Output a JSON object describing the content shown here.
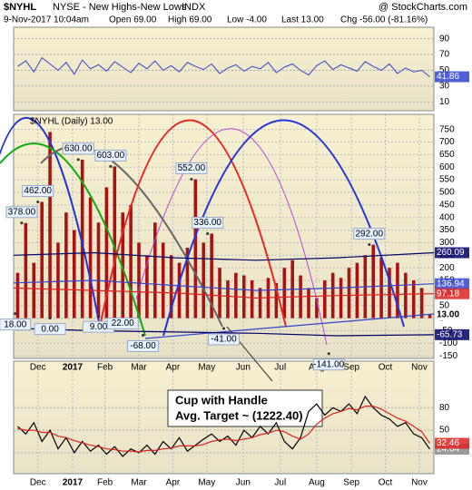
{
  "header": {
    "symbol": "$NYHL",
    "name": "NYSE - New Highs-New Lows",
    "exchange": "INDX",
    "watermark": "@ StockCharts.com",
    "date": "9-Nov-2017 10:04am",
    "open": "Open 69.00",
    "high": "High 69.00",
    "low": "Low -4.00",
    "last": "Last 13.00",
    "change": "Chg -56.00 (-81.16%)"
  },
  "callout": {
    "line1": "Cup with Handle",
    "line2": "Avg. Target ~ (1222.40)"
  },
  "chart_data": [
    {
      "type": "line",
      "ylim": [
        0,
        100
      ],
      "yticks": [
        10,
        30,
        50,
        70,
        90
      ],
      "color": "#3344cc",
      "values": [
        55,
        62,
        48,
        66,
        58,
        50,
        60,
        45,
        63,
        52,
        57,
        49,
        61,
        54,
        47,
        59,
        52,
        62,
        50,
        56,
        48,
        60,
        55,
        51,
        58,
        46,
        53,
        57,
        49,
        55,
        52,
        60,
        47,
        54,
        58,
        50,
        44,
        56,
        62,
        51,
        57,
        53,
        49,
        61,
        55,
        50,
        58,
        46,
        53,
        48,
        50,
        41.86
      ],
      "value_labels": {
        "last": "41.86"
      }
    },
    {
      "type": "bar",
      "legend": "$NYHL (Daily) 13.00",
      "ylim": [
        -160,
        810
      ],
      "yticks": [
        -150,
        -100,
        -50,
        0,
        50,
        100,
        150,
        200,
        250,
        300,
        350,
        400,
        450,
        500,
        550,
        600,
        650,
        700,
        750
      ],
      "xlim": [
        0,
        52
      ],
      "xticks": [
        {
          "value": 3.0,
          "label": "Dec"
        },
        {
          "value": 7.3,
          "label": "2017"
        },
        {
          "value": 11.3,
          "label": "Feb"
        },
        {
          "value": 15.5,
          "label": "Mar"
        },
        {
          "value": 19.7,
          "label": "Apr"
        },
        {
          "value": 23.9,
          "label": "May"
        },
        {
          "value": 28.4,
          "label": "Jun"
        },
        {
          "value": 33.0,
          "label": "Jul"
        },
        {
          "value": 37.5,
          "label": "Aug"
        },
        {
          "value": 41.8,
          "label": "Sep"
        },
        {
          "value": 46.0,
          "label": "Oct"
        },
        {
          "value": 50.2,
          "label": "Nov"
        }
      ],
      "grid": true,
      "color": "#aa1111",
      "values": [
        180,
        378,
        220,
        462,
        740,
        300,
        420,
        350,
        630,
        480,
        380,
        520,
        603,
        420,
        450,
        300,
        250,
        380,
        300,
        250,
        220,
        280,
        552,
        300,
        336,
        200,
        150,
        180,
        170,
        150,
        120,
        160,
        140,
        200,
        230,
        170,
        120,
        80,
        150,
        180,
        160,
        200,
        220,
        250,
        292,
        240,
        200,
        220,
        180,
        150,
        120,
        13
      ],
      "last_label": "13.00",
      "overlays": [
        {
          "color": "#000066",
          "x": [
            0,
            10,
            20,
            30,
            40,
            52
          ],
          "values": [
            250,
            260,
            240,
            230,
            240,
            260.09
          ],
          "last_label": "260.09"
        },
        {
          "color": "#3344cc",
          "x": [
            0,
            10,
            20,
            30,
            40,
            52
          ],
          "values": [
            140,
            150,
            130,
            110,
            120,
            136.94
          ],
          "last_label": "136.94"
        },
        {
          "color": "#dd2222",
          "x": [
            0,
            10,
            20,
            30,
            40,
            52
          ],
          "values": [
            120,
            110,
            100,
            80,
            90,
            97.18
          ],
          "last_label": "97.18"
        },
        {
          "color": "#000066",
          "x": [
            0,
            10,
            20,
            30,
            40,
            52
          ],
          "values": [
            -40,
            -50,
            -55,
            -60,
            -70,
            -65.73
          ],
          "last_label": "-65.73"
        }
      ],
      "annotations": [
        {
          "x": 1,
          "value": 378,
          "label": "378.00"
        },
        {
          "x": 3,
          "value": 462,
          "label": "462.00"
        },
        {
          "x": 8,
          "value": 630,
          "label": "630.00"
        },
        {
          "x": 12,
          "value": 603,
          "label": "603.00"
        },
        {
          "x": 22,
          "value": 552,
          "label": "552.00"
        },
        {
          "x": 24,
          "value": 336,
          "label": "336.00"
        },
        {
          "x": 44,
          "value": 292,
          "label": "292.00"
        },
        {
          "x": 0.2,
          "value": 18,
          "label": "18.00"
        },
        {
          "x": 4.5,
          "value": 0,
          "label": "0.00"
        },
        {
          "x": 10.5,
          "value": 9,
          "label": "9.00"
        },
        {
          "x": 13.5,
          "value": 22,
          "label": "22.00"
        },
        {
          "x": 16,
          "value": -68,
          "label": "-68.00"
        },
        {
          "x": 26,
          "value": -41,
          "label": "-41.00"
        },
        {
          "x": 39,
          "value": -141,
          "label": "-141.00"
        }
      ]
    },
    {
      "type": "line",
      "ylim": [
        -8,
        142
      ],
      "yticks": [
        50,
        80
      ],
      "hlines": [
        20
      ],
      "xlim": [
        0,
        52
      ],
      "xticks": [
        {
          "value": 3.0,
          "label": "Dec"
        },
        {
          "value": 7.3,
          "label": "2017"
        },
        {
          "value": 11.3,
          "label": "Feb"
        },
        {
          "value": 15.5,
          "label": "Mar"
        },
        {
          "value": 19.7,
          "label": "Apr"
        },
        {
          "value": 23.9,
          "label": "May"
        },
        {
          "value": 28.4,
          "label": "Jun"
        },
        {
          "value": 33.0,
          "label": "Jul"
        },
        {
          "value": 37.5,
          "label": "Aug"
        },
        {
          "value": 41.8,
          "label": "Sep"
        },
        {
          "value": 46.0,
          "label": "Oct"
        },
        {
          "value": 50.2,
          "label": "Nov"
        }
      ],
      "series": [
        {
          "color": "#000000",
          "values": [
            55,
            45,
            60,
            35,
            50,
            25,
            40,
            20,
            35,
            22,
            30,
            18,
            28,
            15,
            25,
            20,
            30,
            18,
            35,
            25,
            40,
            22,
            30,
            38,
            45,
            35,
            42,
            30,
            50,
            40,
            55,
            45,
            60,
            35,
            25,
            40,
            75,
            85,
            70,
            80,
            75,
            85,
            72,
            95,
            80,
            70,
            65,
            55,
            60,
            45,
            40,
            24.64
          ],
          "last_label": "24.64"
        },
        {
          "color": "#dd2222",
          "values": [
            52,
            50,
            50,
            47,
            47,
            42,
            40,
            36,
            33,
            30,
            28,
            25,
            24,
            22,
            22,
            21,
            23,
            23,
            25,
            26,
            29,
            29,
            29,
            31,
            35,
            37,
            38,
            36,
            38,
            40,
            44,
            46,
            50,
            48,
            42,
            38,
            45,
            58,
            66,
            72,
            75,
            79,
            77,
            82,
            82,
            78,
            72,
            66,
            62,
            55,
            48,
            32.46
          ],
          "last_label": "32.46"
        }
      ]
    }
  ]
}
